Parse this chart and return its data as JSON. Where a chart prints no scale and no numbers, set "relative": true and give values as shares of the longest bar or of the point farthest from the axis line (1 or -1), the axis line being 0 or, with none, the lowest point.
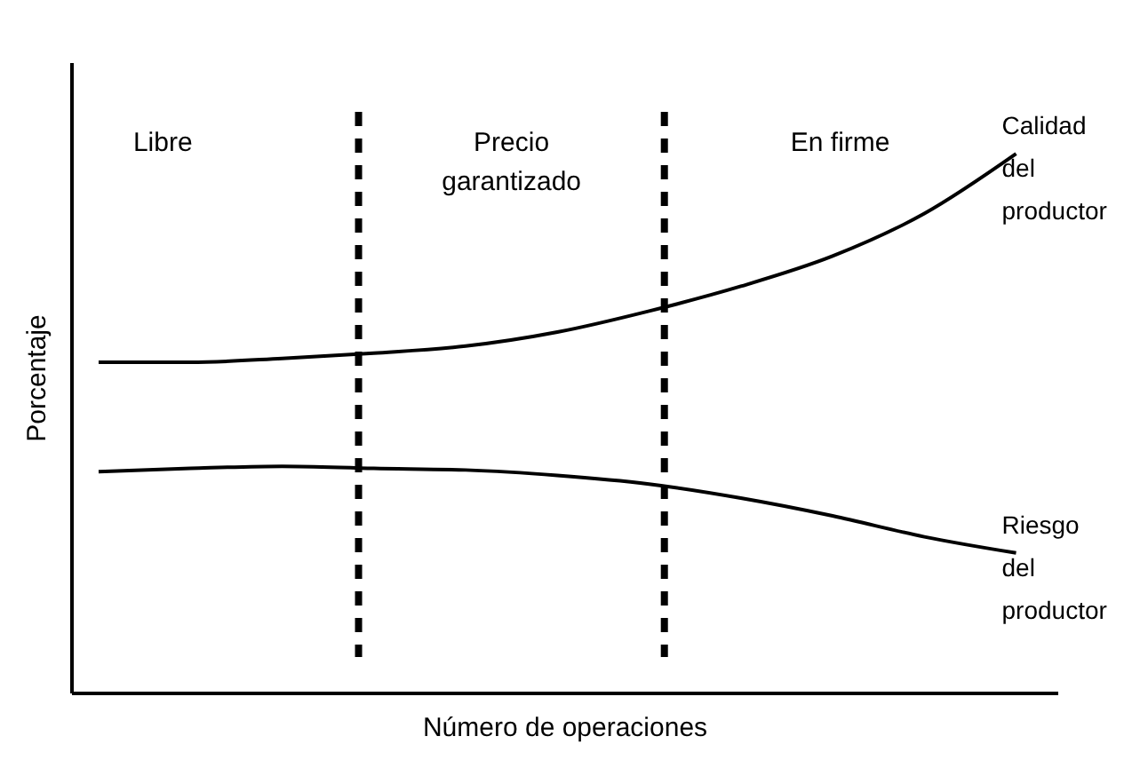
{
  "chart_data": {
    "type": "line",
    "relative": true,
    "xlabel": "Número de operaciones",
    "ylabel": "Porcentaje",
    "categories": [
      null,
      null,
      null,
      null,
      null,
      null,
      null,
      null,
      null,
      null,
      null
    ],
    "series": [
      {
        "name": "Calidad del productor",
        "color": "#000000",
        "values": [
          0.613,
          0.613,
          0.62,
          0.63,
          0.643,
          0.669,
          0.708,
          0.754,
          0.81,
          0.889,
          1
        ]
      },
      {
        "name": "Riesgo del productor",
        "color": "#000000",
        "values": [
          0.41,
          0.416,
          0.42,
          0.416,
          0.413,
          0.403,
          0.387,
          0.361,
          0.328,
          0.289,
          0.259
        ]
      }
    ],
    "annotations": [
      "Libre",
      "Precio garantizado",
      "En firme"
    ],
    "marker": "none",
    "line_style": "solid"
  }
}
